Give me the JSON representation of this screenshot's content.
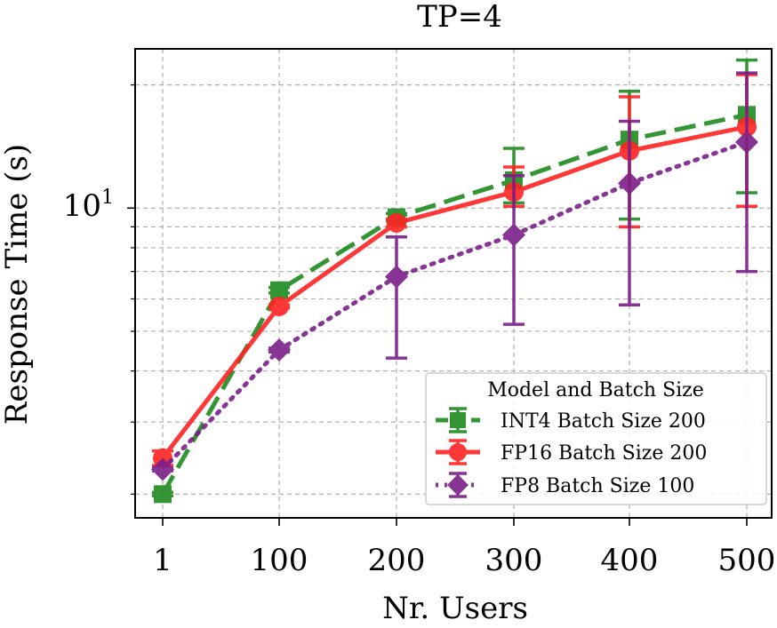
{
  "chart_data": {
    "type": "line",
    "title": "TP=4",
    "xlabel": "Nr. Users",
    "ylabel": "Response Time (s)",
    "yscale": "log",
    "ylim": [
      1.75,
      24.5
    ],
    "x": [
      1,
      100,
      200,
      300,
      400,
      500
    ],
    "x_tick_labels": [
      "1",
      "100",
      "200",
      "300",
      "400",
      "500"
    ],
    "y_tick_label": {
      "base": "10",
      "exp": "1",
      "value": 10
    },
    "grid": true,
    "legend": {
      "title": "Model and Batch Size",
      "placement": "lower-right"
    },
    "series": [
      {
        "name": "INT4 Batch Size 200",
        "color": "#1f8a1f",
        "style": "dashed",
        "marker": "square",
        "values": [
          2.0,
          6.3,
          9.5,
          11.7,
          14.7,
          16.9
        ],
        "err_low": [
          1.98,
          6.2,
          9.3,
          10.3,
          9.4,
          10.9
        ],
        "err_high": [
          2.02,
          6.4,
          9.7,
          14.0,
          19.3,
          23.0
        ]
      },
      {
        "name": "FP16 Batch Size 200",
        "color": "#ff2222",
        "style": "solid",
        "marker": "circle",
        "values": [
          2.45,
          5.75,
          9.2,
          10.95,
          13.8,
          15.8
        ],
        "err_low": [
          2.35,
          5.7,
          9.0,
          10.1,
          9.0,
          10.1
        ],
        "err_high": [
          2.55,
          5.8,
          9.4,
          12.6,
          18.7,
          21.2
        ]
      },
      {
        "name": "FP8 Batch Size 100",
        "color": "#7b1f8a",
        "style": "dotted",
        "marker": "diamond",
        "values": [
          2.3,
          4.5,
          6.8,
          8.6,
          11.5,
          14.5
        ],
        "err_low": [
          2.28,
          4.45,
          4.3,
          5.2,
          5.8,
          7.0
        ],
        "err_high": [
          2.32,
          4.55,
          8.5,
          12.0,
          16.3,
          21.4
        ]
      }
    ]
  }
}
